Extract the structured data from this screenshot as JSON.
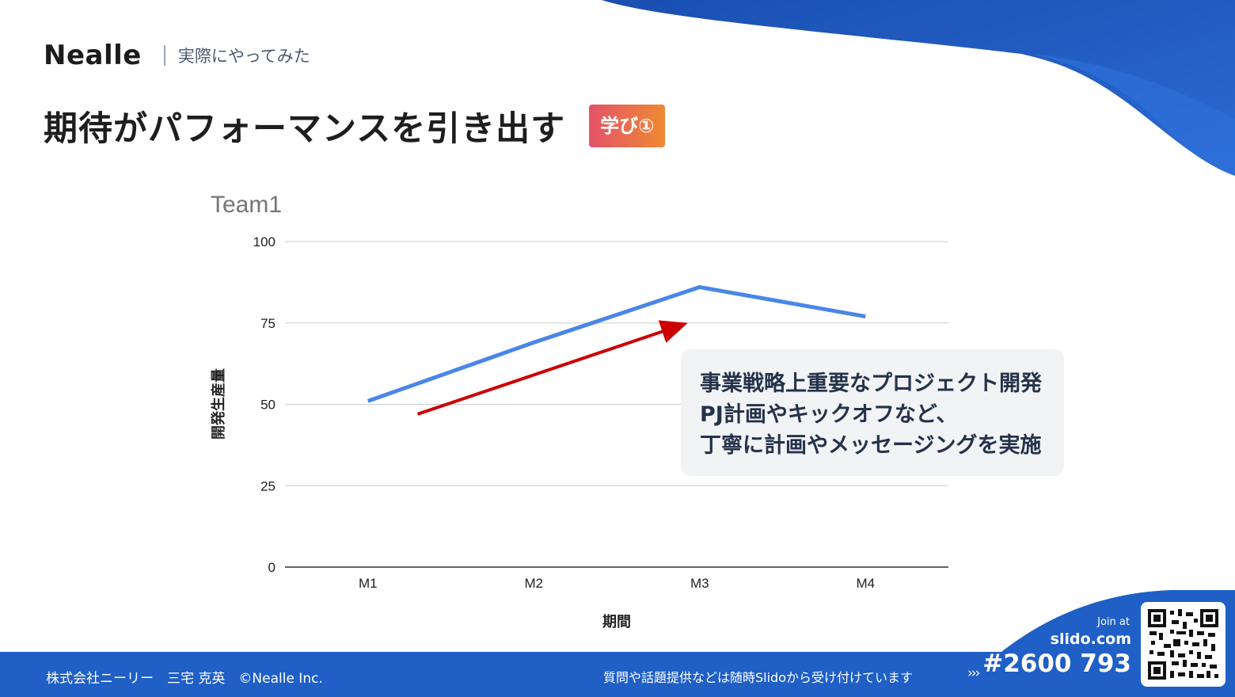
{
  "brand": {
    "logo": "Nealle",
    "subtitle": "実際にやってみた"
  },
  "title": "期待がパフォーマンスを引き出す",
  "badge": "学び①",
  "chart_data": {
    "type": "line",
    "title": "Team1",
    "xlabel": "期間",
    "ylabel": "開発生産量",
    "categories": [
      "M1",
      "M2",
      "M3",
      "M4"
    ],
    "series": [
      {
        "values": [
          51,
          69,
          86,
          77
        ],
        "color": "#4a86e8"
      }
    ],
    "ylim": [
      0,
      100
    ],
    "yticks": [
      0,
      25,
      50,
      75,
      100
    ],
    "grid": true,
    "annotation_arrow": {
      "from": {
        "category": "M1.3",
        "value": 47
      },
      "to": {
        "category": "M3",
        "value": 75
      },
      "color": "#cc0000"
    }
  },
  "callout": {
    "lines": [
      "事業戦略上重要なプロジェクト開発",
      "PJ計画やキックオフなど、",
      "丁寧に計画やメッセージングを実施"
    ]
  },
  "footer": {
    "company": "株式会社ニーリー　三宅 克英　©Nealle Inc.",
    "notice": "質問や話題提供などは随時Slidoから受け付けています",
    "arrow": "›››"
  },
  "slido": {
    "join_at": "Join at",
    "url": "slido.com",
    "code": "#2600 793"
  },
  "colors": {
    "brand_blue": "#1f5fc6",
    "line_blue": "#4a86e8",
    "arrow_red": "#cc0000",
    "badge_from": "#e4526a",
    "badge_to": "#ee8a33"
  }
}
